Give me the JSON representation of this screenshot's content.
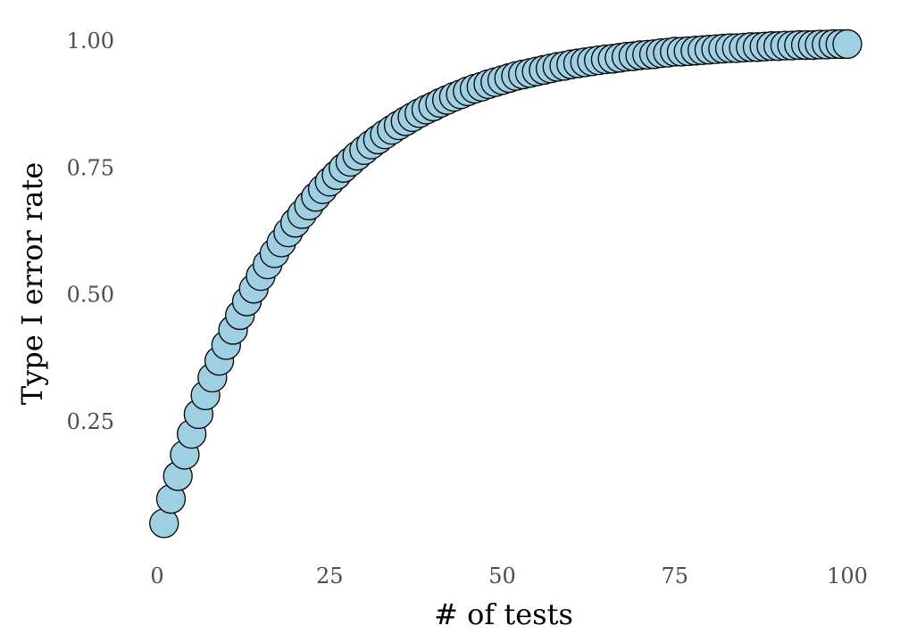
{
  "colors": {
    "point_fill": "#9ECFE3",
    "point_stroke": "#000000",
    "tick_text": "#4d4d4d",
    "title_text": "#000000",
    "background": "#ffffff"
  },
  "chart_data": {
    "type": "scatter",
    "title": "",
    "xlabel": "# of tests",
    "ylabel": "Type I error rate",
    "xlim": [
      0,
      100
    ],
    "ylim": [
      0.05,
      1.0
    ],
    "x_ticks": [
      0,
      25,
      50,
      75,
      100
    ],
    "x_tick_labels": [
      "0",
      "25",
      "50",
      "75",
      "100"
    ],
    "y_ticks": [
      0.25,
      0.5,
      0.75,
      1.0
    ],
    "y_tick_labels": [
      "0.25",
      "0.50",
      "0.75",
      "1.00"
    ],
    "grid": false,
    "legend": "none",
    "x": [
      1,
      2,
      3,
      4,
      5,
      6,
      7,
      8,
      9,
      10,
      11,
      12,
      13,
      14,
      15,
      16,
      17,
      18,
      19,
      20,
      21,
      22,
      23,
      24,
      25,
      26,
      27,
      28,
      29,
      30,
      31,
      32,
      33,
      34,
      35,
      36,
      37,
      38,
      39,
      40,
      41,
      42,
      43,
      44,
      45,
      46,
      47,
      48,
      49,
      50,
      51,
      52,
      53,
      54,
      55,
      56,
      57,
      58,
      59,
      60,
      61,
      62,
      63,
      64,
      65,
      66,
      67,
      68,
      69,
      70,
      71,
      72,
      73,
      74,
      75,
      76,
      77,
      78,
      79,
      80,
      81,
      82,
      83,
      84,
      85,
      86,
      87,
      88,
      89,
      90,
      91,
      92,
      93,
      94,
      95,
      96,
      97,
      98,
      99,
      100
    ],
    "y": [
      0.05,
      0.098,
      0.143,
      0.185,
      0.226,
      0.265,
      0.302,
      0.337,
      0.37,
      0.401,
      0.431,
      0.46,
      0.487,
      0.512,
      0.537,
      0.56,
      0.582,
      0.603,
      0.623,
      0.642,
      0.659,
      0.676,
      0.693,
      0.708,
      0.723,
      0.736,
      0.75,
      0.762,
      0.774,
      0.785,
      0.796,
      0.806,
      0.816,
      0.825,
      0.834,
      0.842,
      0.85,
      0.858,
      0.865,
      0.871,
      0.878,
      0.884,
      0.89,
      0.895,
      0.901,
      0.906,
      0.91,
      0.915,
      0.919,
      0.923,
      0.927,
      0.931,
      0.934,
      0.937,
      0.94,
      0.943,
      0.946,
      0.949,
      0.951,
      0.954,
      0.956,
      0.958,
      0.96,
      0.962,
      0.964,
      0.965,
      0.967,
      0.969,
      0.97,
      0.972,
      0.973,
      0.974,
      0.976,
      0.977,
      0.979,
      0.979,
      0.98,
      0.981,
      0.982,
      0.983,
      0.984,
      0.985,
      0.986,
      0.986,
      0.987,
      0.988,
      0.988,
      0.989,
      0.99,
      0.99,
      0.991,
      0.991,
      0.992,
      0.992,
      0.992,
      0.993,
      0.993,
      0.994,
      0.994,
      0.994
    ]
  }
}
